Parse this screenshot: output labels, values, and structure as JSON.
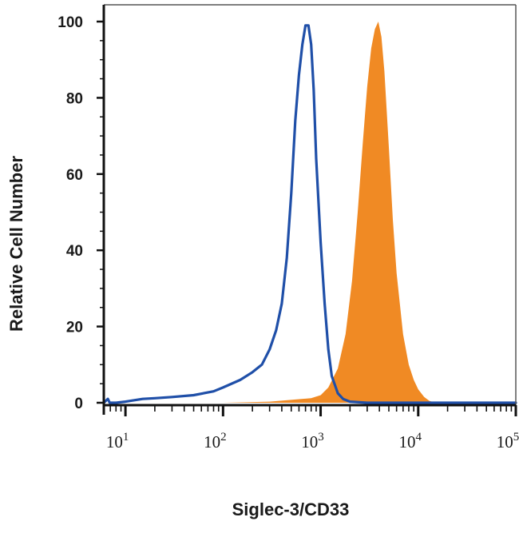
{
  "chart_data": {
    "type": "area",
    "title": "",
    "xlabel": "Siglec-3/CD33",
    "ylabel": "Relative Cell Number",
    "x_scale": "log",
    "xlim": [
      6,
      100000
    ],
    "ylim": [
      0,
      100
    ],
    "y_ticks": [
      "0",
      "20",
      "40",
      "60",
      "80",
      "100"
    ],
    "x_ticks": [
      {
        "base": "10",
        "exp": "1",
        "value": 10
      },
      {
        "base": "10",
        "exp": "2",
        "value": 100
      },
      {
        "base": "10",
        "exp": "3",
        "value": 1000
      },
      {
        "base": "10",
        "exp": "4",
        "value": 10000
      },
      {
        "base": "10",
        "exp": "5",
        "value": 100000
      }
    ],
    "grid": false,
    "legend": "none",
    "series": [
      {
        "style": "line",
        "color": "#1f4fa8",
        "x": [
          6,
          6.6,
          6.9,
          8,
          10,
          15,
          20,
          30,
          50,
          80,
          100,
          150,
          200,
          250,
          300,
          350,
          400,
          450,
          500,
          550,
          600,
          650,
          700,
          750,
          800,
          850,
          900,
          1000,
          1100,
          1200,
          1300,
          1500,
          1700,
          2000,
          3000,
          10000,
          100000
        ],
        "y": [
          0,
          1,
          0,
          0,
          0.3,
          1,
          1.2,
          1.5,
          2,
          3,
          4,
          6,
          8,
          10,
          14,
          19,
          26,
          38,
          55,
          74,
          86,
          94,
          99,
          99,
          94,
          82,
          64,
          42,
          26,
          14,
          7,
          2.5,
          1,
          0.3,
          0,
          0,
          0
        ]
      },
      {
        "style": "filled",
        "color": "#f08a24",
        "x": [
          100,
          300,
          800,
          1000,
          1200,
          1500,
          1800,
          2100,
          2400,
          2700,
          3000,
          3300,
          3600,
          3900,
          4200,
          4500,
          5000,
          5500,
          6000,
          7000,
          8000,
          9000,
          10000,
          11500,
          13000,
          15000
        ],
        "y": [
          0,
          0.3,
          1.2,
          2,
          4,
          9,
          18,
          32,
          50,
          68,
          83,
          93,
          98,
          100,
          96,
          87,
          67,
          48,
          34,
          18,
          10,
          6,
          3.5,
          1.5,
          0.5,
          0
        ]
      }
    ]
  }
}
